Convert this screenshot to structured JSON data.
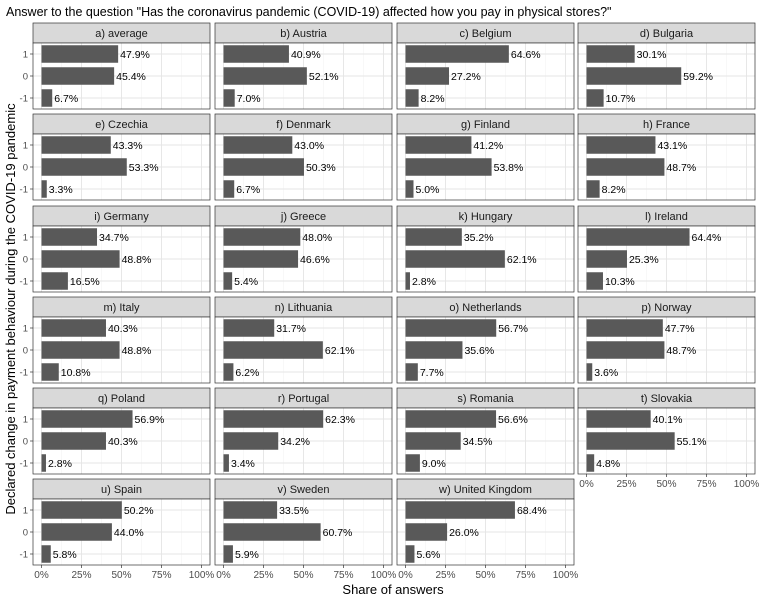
{
  "chart_data": {
    "type": "bar",
    "orientation": "horizontal",
    "title": "Answer to the question \"Has the coronavirus pandemic (COVID-19) affected how you pay in physical stores?\"",
    "xlabel": "Share of answers",
    "ylabel": "Declared change in payment behaviour during the COVID-19 pandemic",
    "categories": [
      "1",
      "0",
      "-1"
    ],
    "xlim": [
      0,
      100
    ],
    "xticks": [
      "0%",
      "25%",
      "50%",
      "75%",
      "100%"
    ],
    "grid": true,
    "bar_color": "#595959",
    "strip_color": "#d9d9d9",
    "panels": [
      {
        "label": "a) average",
        "values": [
          47.9,
          45.4,
          6.7
        ],
        "value_labels": [
          "47.9%",
          "45.4%",
          "6.7%"
        ]
      },
      {
        "label": "b) Austria",
        "values": [
          40.9,
          52.1,
          7.0
        ],
        "value_labels": [
          "40.9%",
          "52.1%",
          "7.0%"
        ]
      },
      {
        "label": "c) Belgium",
        "values": [
          64.6,
          27.2,
          8.2
        ],
        "value_labels": [
          "64.6%",
          "27.2%",
          "8.2%"
        ]
      },
      {
        "label": "d) Bulgaria",
        "values": [
          30.1,
          59.2,
          10.7
        ],
        "value_labels": [
          "30.1%",
          "59.2%",
          "10.7%"
        ]
      },
      {
        "label": "e) Czechia",
        "values": [
          43.3,
          53.3,
          3.3
        ],
        "value_labels": [
          "43.3%",
          "53.3%",
          "3.3%"
        ]
      },
      {
        "label": "f) Denmark",
        "values": [
          43.0,
          50.3,
          6.7
        ],
        "value_labels": [
          "43.0%",
          "50.3%",
          "6.7%"
        ]
      },
      {
        "label": "g) Finland",
        "values": [
          41.2,
          53.8,
          5.0
        ],
        "value_labels": [
          "41.2%",
          "53.8%",
          "5.0%"
        ]
      },
      {
        "label": "h) France",
        "values": [
          43.1,
          48.7,
          8.2
        ],
        "value_labels": [
          "43.1%",
          "48.7%",
          "8.2%"
        ]
      },
      {
        "label": "i) Germany",
        "values": [
          34.7,
          48.8,
          16.5
        ],
        "value_labels": [
          "34.7%",
          "48.8%",
          "16.5%"
        ]
      },
      {
        "label": "j) Greece",
        "values": [
          48.0,
          46.6,
          5.4
        ],
        "value_labels": [
          "48.0%",
          "46.6%",
          "5.4%"
        ]
      },
      {
        "label": "k) Hungary",
        "values": [
          35.2,
          62.1,
          2.8
        ],
        "value_labels": [
          "35.2%",
          "62.1%",
          "2.8%"
        ]
      },
      {
        "label": "l) Ireland",
        "values": [
          64.4,
          25.3,
          10.3
        ],
        "value_labels": [
          "64.4%",
          "25.3%",
          "10.3%"
        ]
      },
      {
        "label": "m) Italy",
        "values": [
          40.3,
          48.8,
          10.8
        ],
        "value_labels": [
          "40.3%",
          "48.8%",
          "10.8%"
        ]
      },
      {
        "label": "n) Lithuania",
        "values": [
          31.7,
          62.1,
          6.2
        ],
        "value_labels": [
          "31.7%",
          "62.1%",
          "6.2%"
        ]
      },
      {
        "label": "o) Netherlands",
        "values": [
          56.7,
          35.6,
          7.7
        ],
        "value_labels": [
          "56.7%",
          "35.6%",
          "7.7%"
        ]
      },
      {
        "label": "p) Norway",
        "values": [
          47.7,
          48.7,
          3.6
        ],
        "value_labels": [
          "47.7%",
          "48.7%",
          "3.6%"
        ]
      },
      {
        "label": "q) Poland",
        "values": [
          56.9,
          40.3,
          2.8
        ],
        "value_labels": [
          "56.9%",
          "40.3%",
          "2.8%"
        ]
      },
      {
        "label": "r) Portugal",
        "values": [
          62.3,
          34.2,
          3.4
        ],
        "value_labels": [
          "62.3%",
          "34.2%",
          "3.4%"
        ]
      },
      {
        "label": "s) Romania",
        "values": [
          56.6,
          34.5,
          9.0
        ],
        "value_labels": [
          "56.6%",
          "34.5%",
          "9.0%"
        ]
      },
      {
        "label": "t) Slovakia",
        "values": [
          40.1,
          55.1,
          4.8
        ],
        "value_labels": [
          "40.1%",
          "55.1%",
          "4.8%"
        ]
      },
      {
        "label": "u) Spain",
        "values": [
          50.2,
          44.0,
          5.8
        ],
        "value_labels": [
          "50.2%",
          "44.0%",
          "5.8%"
        ]
      },
      {
        "label": "v) Sweden",
        "values": [
          33.5,
          60.7,
          5.9
        ],
        "value_labels": [
          "33.5%",
          "60.7%",
          "5.9%"
        ]
      },
      {
        "label": "w) United Kingdom",
        "values": [
          68.4,
          26.0,
          5.6
        ],
        "value_labels": [
          "68.4%",
          "26.0%",
          "5.6%"
        ]
      }
    ]
  }
}
